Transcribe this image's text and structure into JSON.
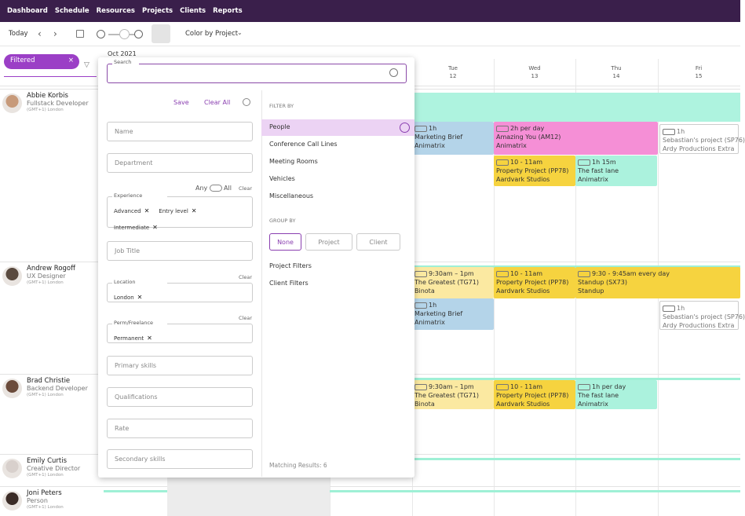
{
  "nav": [
    "Dashboard",
    "Schedule",
    "Resources",
    "Projects",
    "Clients",
    "Reports"
  ],
  "toolbar": {
    "today": "Today",
    "color_by": "Color by Project"
  },
  "filter_chip": "Filtered",
  "calendar": {
    "month": "Oct 2021",
    "days": [
      {
        "weekday": "Tue",
        "date": "12"
      },
      {
        "weekday": "Wed",
        "date": "13"
      },
      {
        "weekday": "Thu",
        "date": "14"
      },
      {
        "weekday": "Fri",
        "date": "15"
      }
    ]
  },
  "people": [
    {
      "name": "Abbie Korbis",
      "role": "Fullstack Developer",
      "timezone": "(GMT+1) London"
    },
    {
      "name": "Andrew Rogoff",
      "role": "UX Designer",
      "timezone": "(GMT+1) London"
    },
    {
      "name": "Brad Christie",
      "role": "Backend Developer",
      "timezone": "(GMT+1) London"
    },
    {
      "name": "Emily Curtis",
      "role": "Creative Director",
      "timezone": "(GMT+1) London"
    },
    {
      "name": "Joni Peters",
      "role": "Person",
      "timezone": "(GMT+1) London"
    }
  ],
  "events": [
    {
      "time": "1h",
      "project": "Marketing Brief",
      "client": "Animatrix"
    },
    {
      "time": "2h per day",
      "project": "Amazing You (AM12)",
      "client": "Animatrix"
    },
    {
      "time": "1h",
      "project": "Sebastian's project (SP76)",
      "client": "Ardy Productions Extra"
    },
    {
      "time": "10 - 11am",
      "project": "Property Project (PP78)",
      "client": "Aardvark Studios"
    },
    {
      "time": "1h 15m",
      "project": "The fast lane",
      "client": "Animatrix"
    },
    {
      "time": "9:30am – 1pm",
      "project": "The Greatest (TG71)",
      "client": "Binota"
    },
    {
      "time": "10 - 11am",
      "project": "Property Project (PP78)",
      "client": "Aardvark Studios"
    },
    {
      "time": "9:30 - 9:45am every day",
      "project": "Standup (SX73)",
      "client": "Standup"
    },
    {
      "time": "1h",
      "project": "Marketing Brief",
      "client": "Animatrix"
    },
    {
      "time": "1h",
      "project": "Sebastian's project (SP76)",
      "client": "Ardy Productions Extra"
    },
    {
      "time": "9:30am – 1pm",
      "project": "The Greatest (TG71)",
      "client": "Binota"
    },
    {
      "time": "10 - 11am",
      "project": "Property Project (PP78)",
      "client": "Aardvark Studios"
    },
    {
      "time": "1h per day",
      "project": "The fast lane",
      "client": "Animatrix"
    }
  ],
  "filter_panel": {
    "search_label": "Search",
    "save": "Save",
    "clear_all": "Clear All",
    "any": "Any",
    "all": "All",
    "clear": "Clear",
    "fields": [
      {
        "label": "Name"
      },
      {
        "label": "Department"
      },
      {
        "label": "Experience",
        "chips": [
          "Advanced",
          "Entry level",
          "Intermediate"
        ]
      },
      {
        "label": "Job Title"
      },
      {
        "label": "Location",
        "chips": [
          "London"
        ]
      },
      {
        "label": "Perm/Freelance",
        "chips": [
          "Permanent"
        ]
      },
      {
        "label": "Primary skills"
      },
      {
        "label": "Qualifications"
      },
      {
        "label": "Rate"
      },
      {
        "label": "Secondary skills"
      }
    ],
    "filter_by": {
      "heading": "FILTER BY",
      "options": [
        "People",
        "Conference Call Lines",
        "Meeting Rooms",
        "Vehicles",
        "Miscellaneous"
      ]
    },
    "group_by": {
      "heading": "GROUP BY",
      "options": [
        "None",
        "Project",
        "Client"
      ]
    },
    "links": [
      "Project Filters",
      "Client Filters"
    ],
    "matching": "Matching Results: 6"
  }
}
